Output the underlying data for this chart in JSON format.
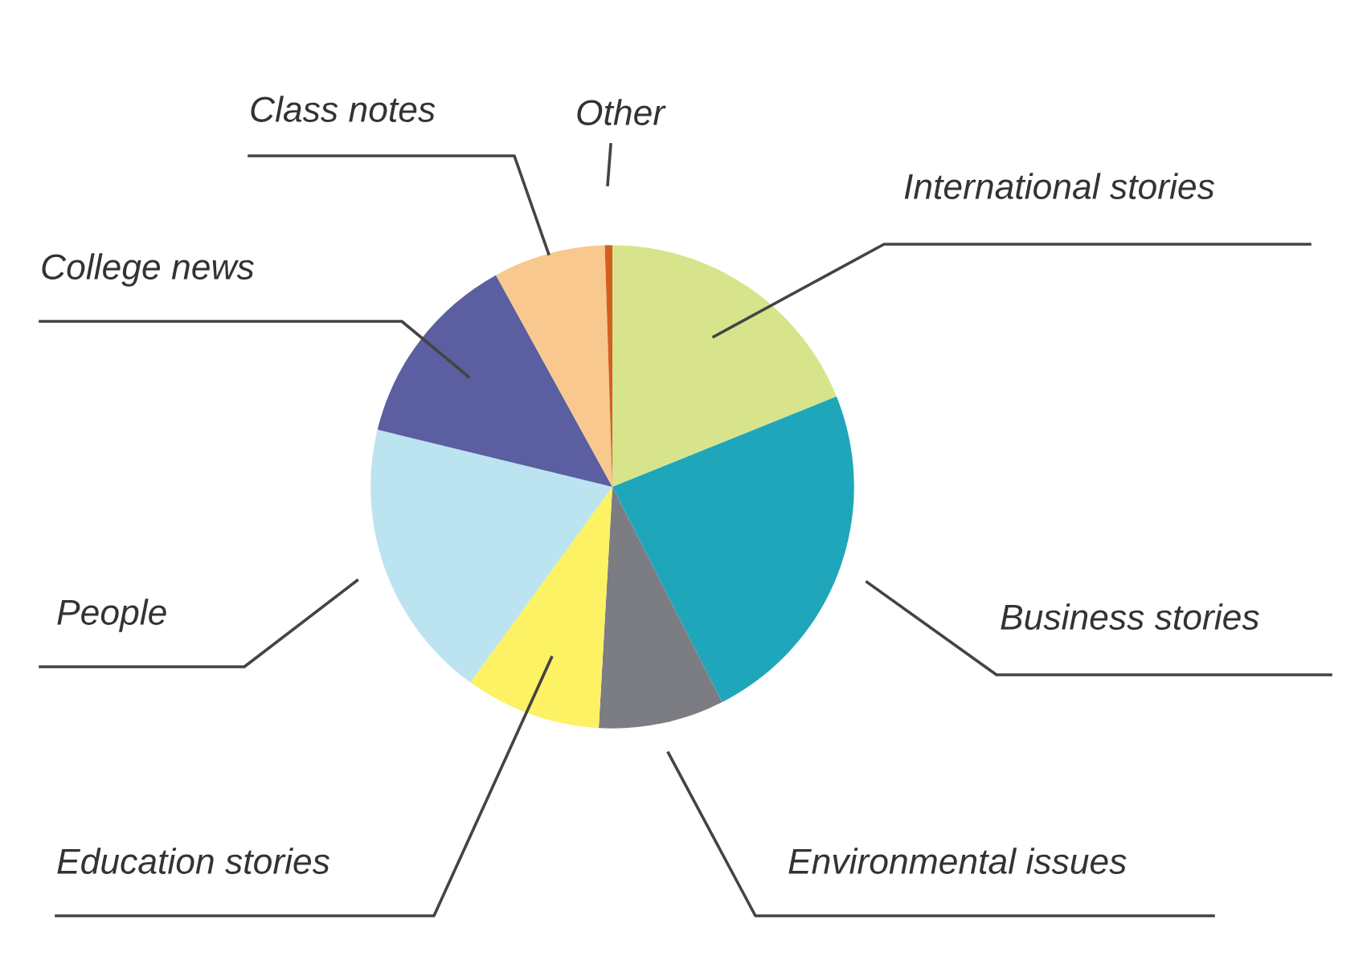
{
  "chart_data": {
    "type": "pie",
    "categories": [
      "International stories",
      "Business stories",
      "Environmental issues",
      "Education stories",
      "People",
      "College news",
      "Class notes",
      "Other"
    ],
    "values": [
      18.9,
      23.6,
      8.4,
      9.1,
      18.8,
      13.2,
      7.5,
      0.5
    ],
    "colors": [
      "#d7e48c",
      "#1fa6ba",
      "#7b7d82",
      "#fcf263",
      "#bce3f0",
      "#5b5ea0",
      "#f8c88f",
      "#d2601f"
    ]
  }
}
